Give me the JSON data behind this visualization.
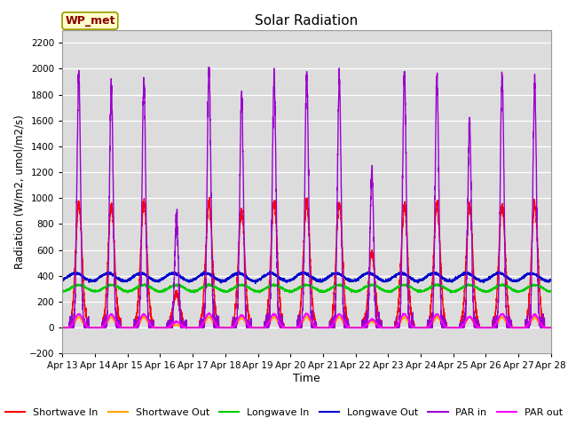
{
  "title": "Solar Radiation",
  "xlabel": "Time",
  "ylabel": "Radiation (W/m2, umol/m2/s)",
  "ylim": [
    -200,
    2300
  ],
  "yticks": [
    -200,
    0,
    200,
    400,
    600,
    800,
    1000,
    1200,
    1400,
    1600,
    1800,
    2000,
    2200
  ],
  "start_day": 13,
  "n_days": 15,
  "points_per_day": 288,
  "colors": {
    "shortwave_in": "#FF0000",
    "shortwave_out": "#FFA500",
    "longwave_in": "#00CC00",
    "longwave_out": "#0000CC",
    "par_in": "#9900CC",
    "par_out": "#FF00FF"
  },
  "legend_label": "WP_met",
  "background_color": "#DCDCDC",
  "fig_background": "#FFFFFF",
  "line_width": 1.0,
  "day_peaks_sw": [
    960,
    940,
    960,
    270,
    970,
    900,
    970,
    960,
    950,
    580,
    950,
    950,
    940,
    940,
    950
  ],
  "day_peaks_par": [
    1950,
    1880,
    1900,
    860,
    2000,
    1800,
    1950,
    1960,
    1920,
    1200,
    1950,
    1930,
    1560,
    1960,
    1860
  ]
}
